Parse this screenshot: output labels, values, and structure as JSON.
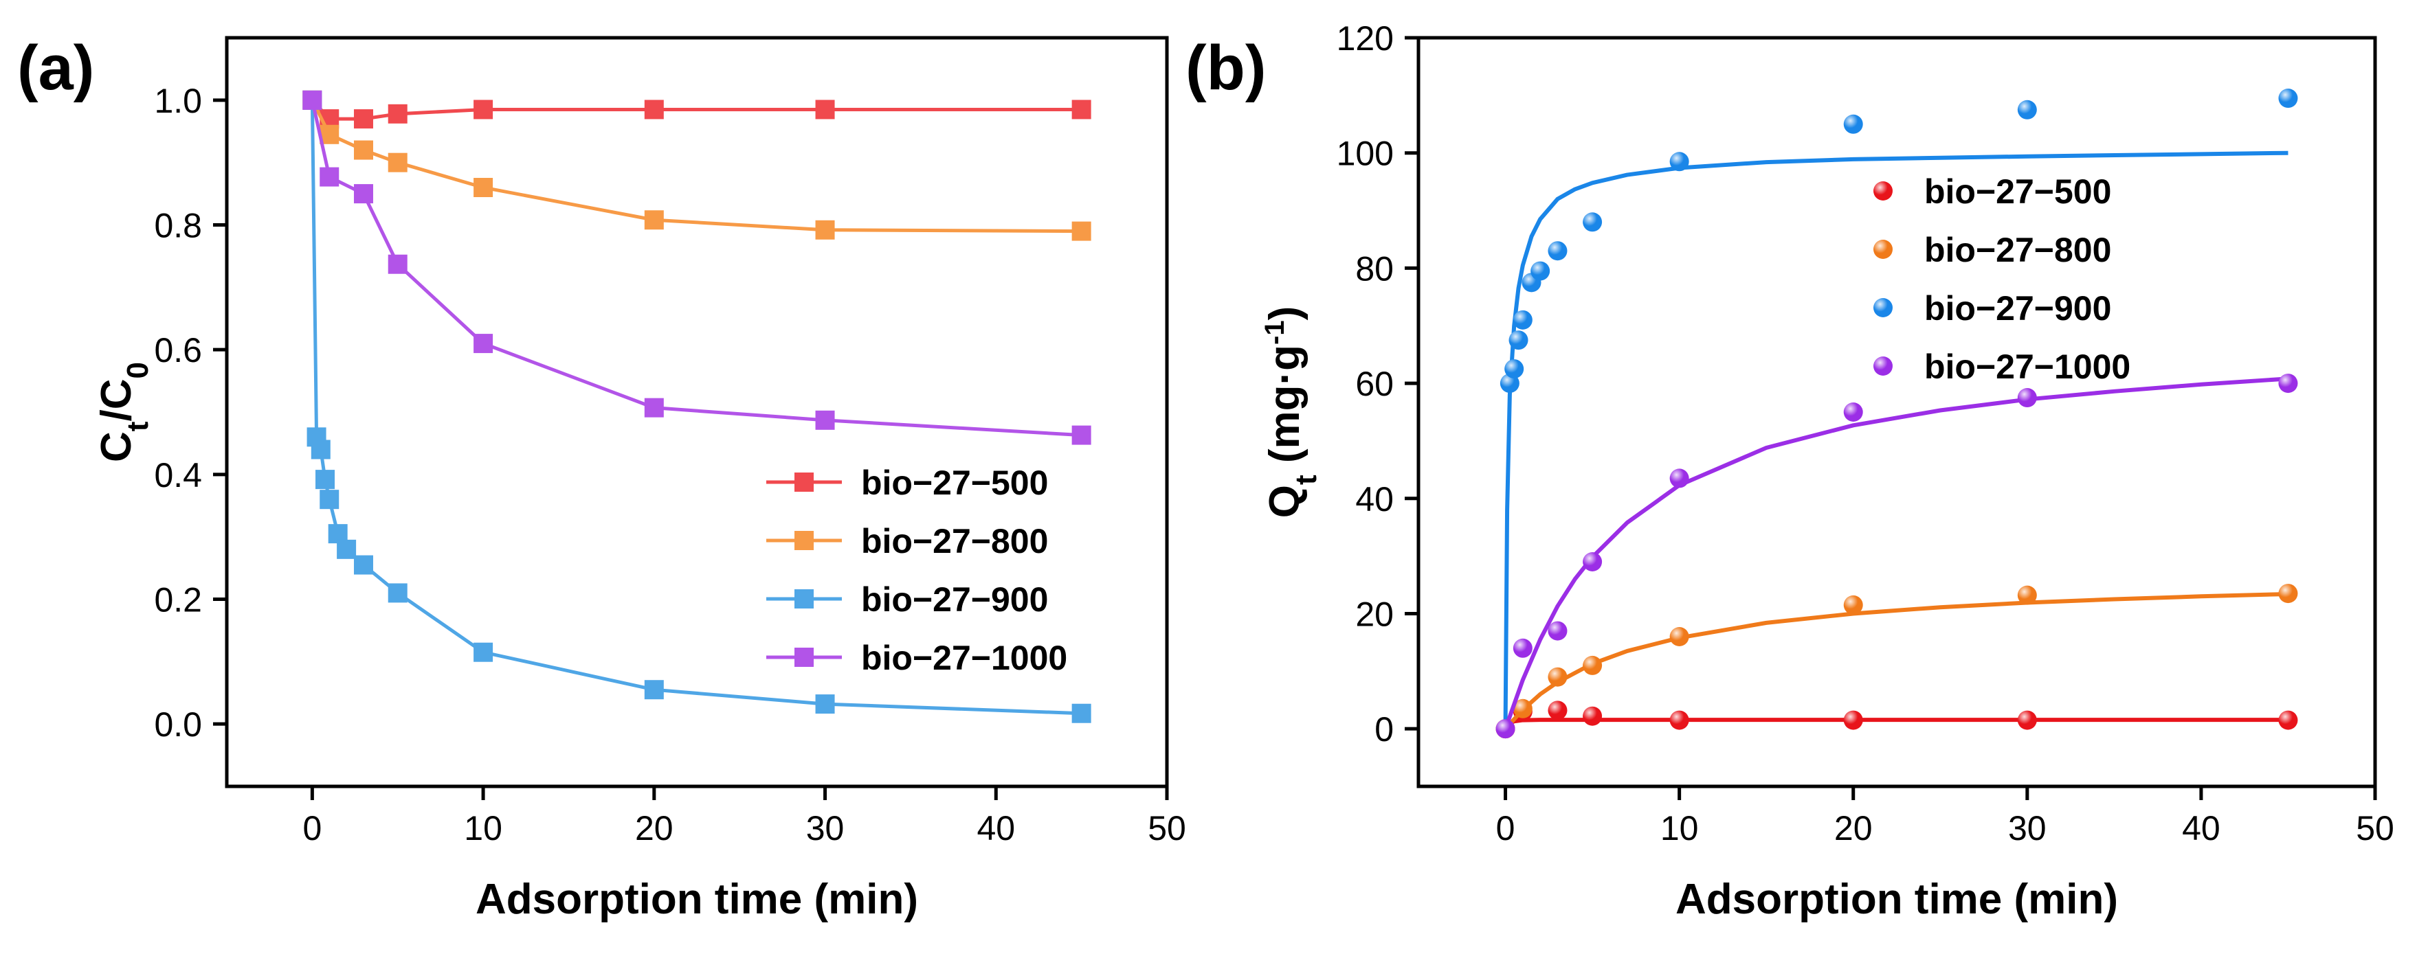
{
  "chart_data": [
    {
      "panel": "(a)",
      "type": "line",
      "marker": "square",
      "xlabel": "Adsorption time (min)",
      "ylabel_main": "C",
      "ylabel_sub1": "t",
      "ylabel_mid": "/C",
      "ylabel_sub2": "0",
      "xlim": [
        -5,
        50
      ],
      "ylim": [
        -0.1,
        1.1
      ],
      "xticks": [
        0,
        10,
        20,
        30,
        40,
        50
      ],
      "yticks": [
        0.0,
        0.2,
        0.4,
        0.6,
        0.8,
        1.0
      ],
      "ytick_decimals": 1,
      "grid": false,
      "legend": "center-right",
      "series": [
        {
          "name": "bio−27−500",
          "color": "#f0494e",
          "x": [
            0,
            1,
            3,
            5,
            10,
            20,
            30,
            45
          ],
          "y": [
            1.0,
            0.97,
            0.97,
            0.978,
            0.985,
            0.985,
            0.985,
            0.985
          ]
        },
        {
          "name": "bio−27−800",
          "color": "#f79a46",
          "x": [
            0,
            1,
            3,
            5,
            10,
            20,
            30,
            45
          ],
          "y": [
            1.0,
            0.945,
            0.92,
            0.9,
            0.86,
            0.808,
            0.792,
            0.79
          ]
        },
        {
          "name": "bio−27−900",
          "color": "#4fa6e6",
          "x": [
            0,
            0.25,
            0.5,
            0.75,
            1,
            1.5,
            2,
            3,
            5,
            10,
            20,
            30,
            45
          ],
          "y": [
            1.0,
            0.46,
            0.44,
            0.392,
            0.36,
            0.305,
            0.28,
            0.255,
            0.21,
            0.115,
            0.055,
            0.032,
            0.017
          ]
        },
        {
          "name": "bio−27−1000",
          "color": "#b254e8",
          "x": [
            0,
            1,
            3,
            5,
            10,
            20,
            30,
            45
          ],
          "y": [
            1.0,
            0.877,
            0.85,
            0.737,
            0.61,
            0.507,
            0.487,
            0.463
          ]
        }
      ]
    },
    {
      "panel": "(b)",
      "type": "scatter",
      "marker": "circle",
      "xlabel": "Adsorption time (min)",
      "ylabel_main": "Q",
      "ylabel_sub1": "t",
      "ylabel_mid": " (mg·g",
      "ylabel_sup": "-1",
      "ylabel_end": ")",
      "xlim": [
        -5,
        50
      ],
      "ylim": [
        -10,
        120
      ],
      "xticks": [
        0,
        10,
        20,
        30,
        40,
        50
      ],
      "yticks": [
        0,
        20,
        40,
        60,
        80,
        100,
        120
      ],
      "ytick_decimals": 0,
      "grid": false,
      "legend": "top-right",
      "series": [
        {
          "name": "bio−27−500",
          "color": "#e8141b",
          "x": [
            0,
            1,
            3,
            5,
            10,
            20,
            30,
            45
          ],
          "y": [
            0,
            3,
            3.2,
            2.2,
            1.5,
            1.5,
            1.5,
            1.5
          ],
          "fit_x": [
            0,
            0.25,
            0.5,
            1,
            2,
            3,
            5,
            10,
            20,
            30,
            45
          ],
          "fit_y": [
            0,
            0.95,
            1.3,
            1.5,
            1.55,
            1.55,
            1.55,
            1.55,
            1.55,
            1.55,
            1.55
          ]
        },
        {
          "name": "bio−27−800",
          "color": "#f07a1a",
          "x": [
            0,
            1,
            3,
            5,
            10,
            20,
            30,
            45
          ],
          "y": [
            0,
            3.5,
            9,
            11,
            16,
            21.5,
            23.2,
            23.5
          ],
          "fit_x": [
            0,
            1,
            2,
            3,
            5,
            7,
            10,
            15,
            20,
            25,
            30,
            35,
            40,
            45
          ],
          "fit_y": [
            0,
            3.3,
            6.0,
            8.1,
            11.3,
            13.5,
            15.8,
            18.4,
            20.0,
            21.1,
            21.9,
            22.5,
            23.0,
            23.4
          ]
        },
        {
          "name": "bio−27−900",
          "color": "#1a86e8",
          "x": [
            0.25,
            0.5,
            0.75,
            1,
            1.5,
            2,
            3,
            5,
            10,
            20,
            30,
            45
          ],
          "y": [
            60,
            62.5,
            67.5,
            71,
            77.5,
            79.5,
            83,
            88,
            98.5,
            105,
            107.5,
            109.5
          ],
          "fit_x": [
            0,
            0.1,
            0.25,
            0.5,
            0.75,
            1,
            1.5,
            2,
            3,
            4,
            5,
            7,
            10,
            15,
            20,
            30,
            45
          ],
          "fit_y": [
            0,
            38,
            58,
            70,
            76.5,
            80.5,
            85.5,
            88.5,
            92,
            93.7,
            94.8,
            96.2,
            97.4,
            98.4,
            98.9,
            99.4,
            100
          ]
        },
        {
          "name": "bio−27−1000",
          "color": "#9b2ee6",
          "x": [
            0,
            1,
            3,
            5,
            10,
            20,
            30,
            45
          ],
          "y": [
            0,
            14,
            17,
            29,
            43.5,
            55,
            57.5,
            60
          ],
          "fit_x": [
            0,
            1,
            2,
            3,
            4,
            5,
            7,
            10,
            15,
            20,
            25,
            30,
            35,
            40,
            45
          ],
          "fit_y": [
            0,
            8.5,
            15.5,
            21.3,
            26,
            29.8,
            35.8,
            42.3,
            48.8,
            52.7,
            55.3,
            57.2,
            58.6,
            59.8,
            60.8
          ]
        }
      ]
    }
  ]
}
